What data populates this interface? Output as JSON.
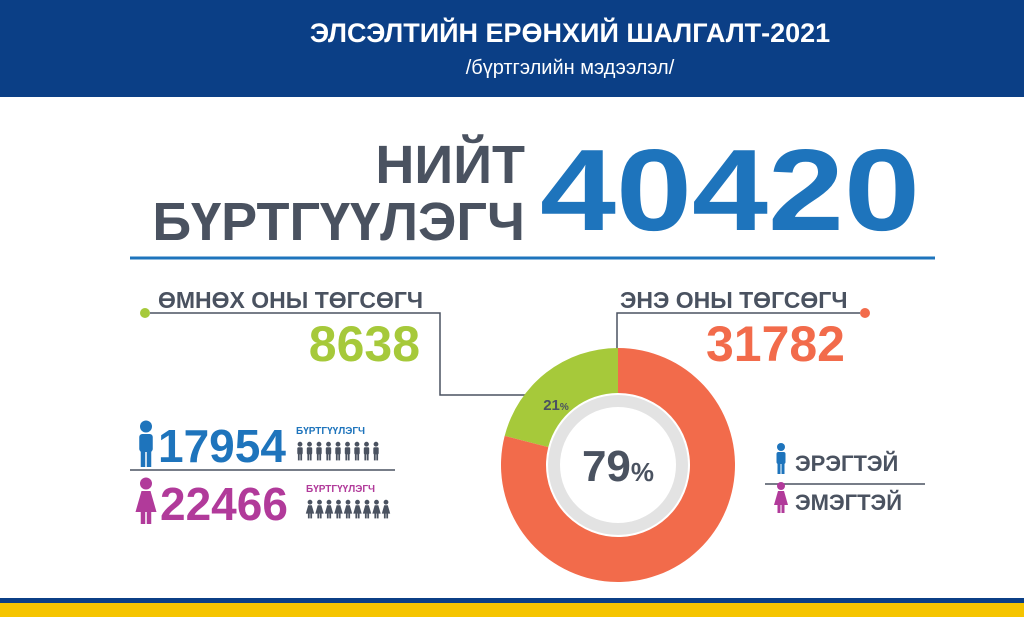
{
  "header": {
    "title": "ЭЛСЭЛТИЙН ЕРӨНХИЙ ШАЛГАЛТ-2021",
    "subtitle": "/бүртгэлийн мэдээлэл/"
  },
  "total": {
    "label_line1": "НИЙТ",
    "label_line2": "БҮРТГҮҮЛЭГЧ",
    "value": 40420
  },
  "previous_graduates": {
    "label": "ӨМНӨХ ОНЫ ТӨГСӨГЧ",
    "value": 8638
  },
  "current_graduates": {
    "label": "ЭНЭ ОНЫ ТӨГСӨГЧ",
    "value": 31782
  },
  "donut": {
    "segments": [
      {
        "value": 21,
        "unit": "%",
        "color": "#a6c93a"
      },
      {
        "value": 79,
        "unit": "%",
        "color": "#f26b4b"
      }
    ]
  },
  "gender": {
    "male": {
      "value": 17954,
      "caption": "БҮРТГҮҮЛЭГЧ",
      "legend": "ЭРЭГТЭЙ",
      "color": "#1e74bc"
    },
    "female": {
      "value": 22466,
      "caption": "БҮРТГҮҮЛЭГЧ",
      "legend": "ЭМЭГТЭЙ",
      "color": "#b13a9a"
    }
  }
}
